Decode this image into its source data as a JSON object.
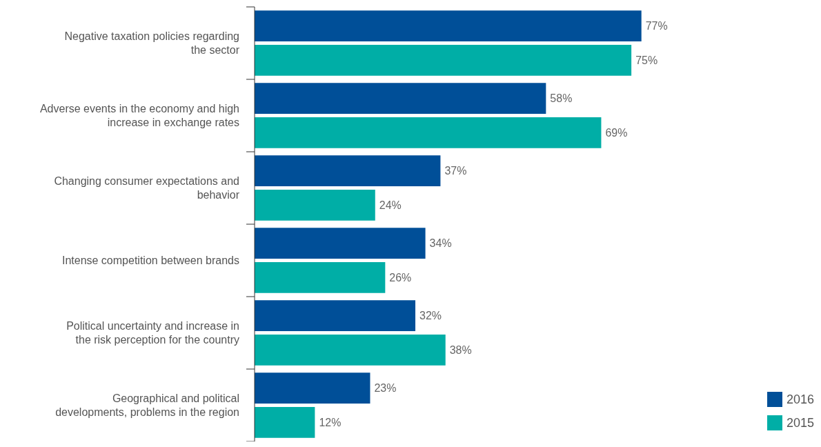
{
  "chart_data": {
    "type": "bar",
    "orientation": "horizontal",
    "categories": [
      "Negative taxation policies regarding the sector",
      "Adverse events in the economy and high increase in exchange rates",
      "Changing consumer expectations and behavior",
      "Intense competition between brands",
      "Political uncertainty and increase in the risk perception for the country",
      "Geographical and political developments, problems in the region"
    ],
    "series": [
      {
        "name": "2016",
        "color": "#004f98",
        "values": [
          77,
          58,
          37,
          34,
          32,
          23
        ],
        "value_labels": [
          "77%",
          "58%",
          "37%",
          "34%",
          "32%",
          "23%"
        ]
      },
      {
        "name": "2015",
        "color": "#00aea6",
        "values": [
          75,
          69,
          24,
          26,
          38,
          12
        ],
        "value_labels": [
          "75%",
          "69%",
          "24%",
          "26%",
          "38%",
          "12%"
        ]
      }
    ],
    "legend": "bottom right"
  }
}
